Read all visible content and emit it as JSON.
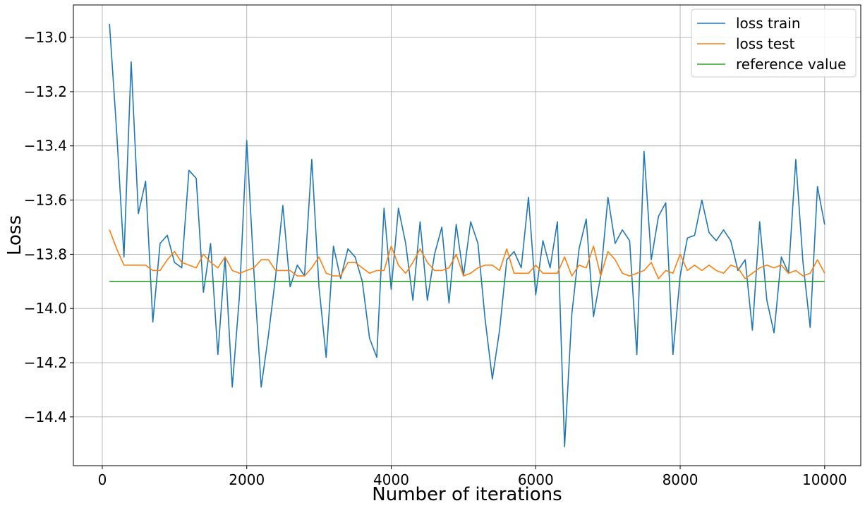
{
  "chart_data": {
    "type": "line",
    "xlabel": "Number of iterations",
    "ylabel": "Loss",
    "xlim": [
      -400,
      10500
    ],
    "ylim": [
      -14.58,
      -12.88
    ],
    "x_ticks": [
      0,
      2000,
      4000,
      6000,
      8000,
      10000
    ],
    "x_tick_labels": [
      "0",
      "2000",
      "4000",
      "6000",
      "8000",
      "10000"
    ],
    "y_ticks": [
      -13.0,
      -13.2,
      -13.4,
      -13.6,
      -13.8,
      -14.0,
      -14.2,
      -14.4
    ],
    "y_tick_labels": [
      "−13.0",
      "−13.2",
      "−13.4",
      "−13.6",
      "−13.8",
      "−14.0",
      "−14.2",
      "−14.4"
    ],
    "grid": true,
    "legend_position": "top-right",
    "x": [
      100,
      200,
      300,
      400,
      500,
      600,
      700,
      800,
      900,
      1000,
      1100,
      1200,
      1300,
      1400,
      1500,
      1600,
      1700,
      1800,
      1900,
      2000,
      2100,
      2200,
      2300,
      2400,
      2500,
      2600,
      2700,
      2800,
      2900,
      3000,
      3100,
      3200,
      3300,
      3400,
      3500,
      3600,
      3700,
      3800,
      3900,
      4000,
      4100,
      4200,
      4300,
      4400,
      4500,
      4600,
      4700,
      4800,
      4900,
      5000,
      5100,
      5200,
      5300,
      5400,
      5500,
      5600,
      5700,
      5800,
      5900,
      6000,
      6100,
      6200,
      6300,
      6400,
      6500,
      6600,
      6700,
      6800,
      6900,
      7000,
      7100,
      7200,
      7300,
      7400,
      7500,
      7600,
      7700,
      7800,
      7900,
      8000,
      8100,
      8200,
      8300,
      8400,
      8500,
      8600,
      8700,
      8800,
      8900,
      9000,
      9100,
      9200,
      9300,
      9400,
      9500,
      9600,
      9700,
      9800,
      9900,
      10000
    ],
    "series": [
      {
        "name": "loss train",
        "color": "#1f77b4",
        "values": [
          -12.95,
          -13.35,
          -13.81,
          -13.09,
          -13.65,
          -13.53,
          -14.05,
          -13.76,
          -13.73,
          -13.83,
          -13.85,
          -13.49,
          -13.52,
          -13.94,
          -13.76,
          -14.17,
          -13.81,
          -14.29,
          -13.95,
          -13.38,
          -13.87,
          -14.29,
          -14.1,
          -13.88,
          -13.62,
          -13.92,
          -13.84,
          -13.88,
          -13.45,
          -13.92,
          -14.18,
          -13.77,
          -13.89,
          -13.78,
          -13.81,
          -13.9,
          -14.11,
          -14.18,
          -13.63,
          -13.93,
          -13.63,
          -13.76,
          -13.97,
          -13.68,
          -13.97,
          -13.8,
          -13.7,
          -13.98,
          -13.69,
          -13.88,
          -13.68,
          -13.76,
          -14.04,
          -14.26,
          -14.08,
          -13.82,
          -13.79,
          -13.85,
          -13.59,
          -13.95,
          -13.75,
          -13.85,
          -13.68,
          -14.51,
          -14.02,
          -13.78,
          -13.67,
          -14.03,
          -13.88,
          -13.59,
          -13.76,
          -13.71,
          -13.75,
          -14.17,
          -13.42,
          -13.82,
          -13.66,
          -13.61,
          -14.17,
          -13.88,
          -13.74,
          -13.73,
          -13.6,
          -13.72,
          -13.75,
          -13.71,
          -13.75,
          -13.86,
          -13.82,
          -14.08,
          -13.68,
          -13.97,
          -14.09,
          -13.81,
          -13.87,
          -13.45,
          -13.83,
          -14.07,
          -13.55,
          -13.69
        ]
      },
      {
        "name": "loss test",
        "color": "#ff7f0e",
        "values": [
          -13.71,
          -13.78,
          -13.84,
          -13.84,
          -13.84,
          -13.84,
          -13.86,
          -13.86,
          -13.82,
          -13.79,
          -13.83,
          -13.84,
          -13.85,
          -13.8,
          -13.83,
          -13.85,
          -13.81,
          -13.86,
          -13.87,
          -13.86,
          -13.85,
          -13.82,
          -13.82,
          -13.86,
          -13.86,
          -13.86,
          -13.88,
          -13.88,
          -13.85,
          -13.81,
          -13.87,
          -13.88,
          -13.88,
          -13.83,
          -13.83,
          -13.85,
          -13.87,
          -13.86,
          -13.86,
          -13.77,
          -13.84,
          -13.87,
          -13.83,
          -13.78,
          -13.83,
          -13.86,
          -13.86,
          -13.85,
          -13.8,
          -13.88,
          -13.87,
          -13.85,
          -13.84,
          -13.84,
          -13.86,
          -13.78,
          -13.87,
          -13.87,
          -13.87,
          -13.84,
          -13.87,
          -13.87,
          -13.87,
          -13.81,
          -13.88,
          -13.84,
          -13.85,
          -13.77,
          -13.88,
          -13.79,
          -13.82,
          -13.87,
          -13.88,
          -13.87,
          -13.86,
          -13.83,
          -13.89,
          -13.86,
          -13.87,
          -13.8,
          -13.86,
          -13.84,
          -13.86,
          -13.84,
          -13.86,
          -13.87,
          -13.84,
          -13.85,
          -13.89,
          -13.87,
          -13.85,
          -13.84,
          -13.85,
          -13.84,
          -13.87,
          -13.86,
          -13.88,
          -13.87,
          -13.82,
          -13.87
        ]
      },
      {
        "name": "reference value",
        "color": "#2ca02c",
        "values": [
          -13.9,
          -13.9,
          -13.9,
          -13.9,
          -13.9,
          -13.9,
          -13.9,
          -13.9,
          -13.9,
          -13.9,
          -13.9,
          -13.9,
          -13.9,
          -13.9,
          -13.9,
          -13.9,
          -13.9,
          -13.9,
          -13.9,
          -13.9,
          -13.9,
          -13.9,
          -13.9,
          -13.9,
          -13.9,
          -13.9,
          -13.9,
          -13.9,
          -13.9,
          -13.9,
          -13.9,
          -13.9,
          -13.9,
          -13.9,
          -13.9,
          -13.9,
          -13.9,
          -13.9,
          -13.9,
          -13.9,
          -13.9,
          -13.9,
          -13.9,
          -13.9,
          -13.9,
          -13.9,
          -13.9,
          -13.9,
          -13.9,
          -13.9,
          -13.9,
          -13.9,
          -13.9,
          -13.9,
          -13.9,
          -13.9,
          -13.9,
          -13.9,
          -13.9,
          -13.9,
          -13.9,
          -13.9,
          -13.9,
          -13.9,
          -13.9,
          -13.9,
          -13.9,
          -13.9,
          -13.9,
          -13.9,
          -13.9,
          -13.9,
          -13.9,
          -13.9,
          -13.9,
          -13.9,
          -13.9,
          -13.9,
          -13.9,
          -13.9,
          -13.9,
          -13.9,
          -13.9,
          -13.9,
          -13.9,
          -13.9,
          -13.9,
          -13.9,
          -13.9,
          -13.9,
          -13.9,
          -13.9,
          -13.9,
          -13.9,
          -13.9,
          -13.9,
          -13.9,
          -13.9,
          -13.9,
          -13.9
        ]
      }
    ]
  }
}
